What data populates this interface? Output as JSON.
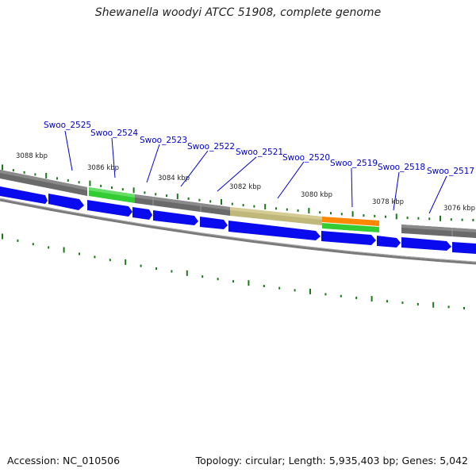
{
  "title": "Shewanella woodyi ATCC 51908, complete genome",
  "footer": {
    "accession": "Accession: NC_010506",
    "summary": "Topology: circular; Length: 5,935,403 bp; Genes: 5,042"
  },
  "colors": {
    "forward_gene": "#0a0aee",
    "cds_green": "#33cc33",
    "orange": "#ff8800",
    "olive": "#c0b87a",
    "backbone": "#666666",
    "tick": "#1a7a1a",
    "label": "#0000cc"
  },
  "kbp_labels": [
    "3088 kbp",
    "3086 kbp",
    "3084 kbp",
    "3082 kbp",
    "3080 kbp",
    "3078 kbp",
    "3076 kbp"
  ],
  "gene_labels": [
    "Swoo_2525",
    "Swoo_2524",
    "Swoo_2523",
    "Swoo_2522",
    "Swoo_2521",
    "Swoo_2520",
    "Swoo_2519",
    "Swoo_2518",
    "Swoo_2517"
  ]
}
